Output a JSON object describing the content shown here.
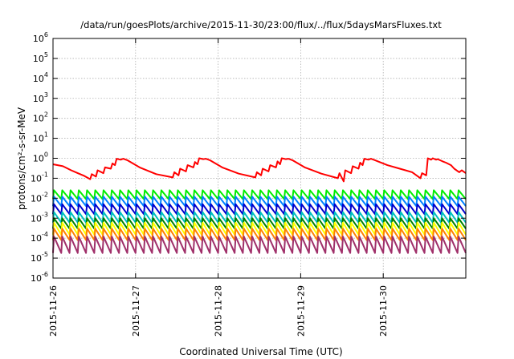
{
  "chart_data": {
    "type": "line",
    "title": "/data/run/goesPlots/archive/2015-11-30/23:00/flux/../flux/5daysMarsFluxes.txt",
    "xlabel": "Coordinated Universal Time (UTC)",
    "ylabel": "protons/cm²-s-sr-MeV",
    "y_scale": "log",
    "ylim": [
      1e-06,
      1000000.0
    ],
    "y_tick_labels": [
      {
        "base": "10",
        "exp": "-6"
      },
      {
        "base": "10",
        "exp": "-5"
      },
      {
        "base": "10",
        "exp": "-4"
      },
      {
        "base": "10",
        "exp": "-3"
      },
      {
        "base": "10",
        "exp": "-2"
      },
      {
        "base": "10",
        "exp": "-1"
      },
      {
        "base": "10",
        "exp": "0"
      },
      {
        "base": "10",
        "exp": "1"
      },
      {
        "base": "10",
        "exp": "2"
      },
      {
        "base": "10",
        "exp": "3"
      },
      {
        "base": "10",
        "exp": "4"
      },
      {
        "base": "10",
        "exp": "5"
      },
      {
        "base": "10",
        "exp": "6"
      }
    ],
    "xlim": [
      "2015-11-26",
      "2015-12-01"
    ],
    "x_ticks": [
      "2015-11-26",
      "2015-11-27",
      "2015-11-28",
      "2015-11-29",
      "2015-11-30"
    ],
    "grid": true,
    "series": [
      {
        "color": "#ff0000",
        "x_days": [
          0,
          0.12,
          0.22,
          0.3,
          0.38,
          0.45,
          0.47,
          0.52,
          0.54,
          0.61,
          0.63,
          0.7,
          0.72,
          0.75,
          0.77,
          0.82,
          0.85,
          0.9,
          1.05,
          1.25,
          1.45,
          1.47,
          1.52,
          1.54,
          1.61,
          1.63,
          1.7,
          1.72,
          1.75,
          1.77,
          1.82,
          1.85,
          1.9,
          2.05,
          2.25,
          2.45,
          2.47,
          2.52,
          2.54,
          2.61,
          2.63,
          2.7,
          2.72,
          2.75,
          2.77,
          2.82,
          2.85,
          2.9,
          3.05,
          3.25,
          3.45,
          3.47,
          3.52,
          3.54,
          3.61,
          3.63,
          3.7,
          3.72,
          3.75,
          3.77,
          3.82,
          3.85,
          3.9,
          4.05,
          4.2,
          4.35,
          4.45,
          4.47,
          4.52,
          4.54,
          4.58,
          4.6,
          4.64,
          4.66,
          4.72,
          4.76,
          4.82,
          4.86,
          4.92,
          4.95,
          5.0
        ],
        "values": [
          0.5,
          0.4,
          0.25,
          0.18,
          0.13,
          0.09,
          0.16,
          0.12,
          0.25,
          0.18,
          0.35,
          0.3,
          0.55,
          0.45,
          0.95,
          0.85,
          0.95,
          0.8,
          0.35,
          0.16,
          0.11,
          0.2,
          0.14,
          0.3,
          0.22,
          0.45,
          0.35,
          0.65,
          0.5,
          1.0,
          0.9,
          0.95,
          0.8,
          0.35,
          0.17,
          0.11,
          0.2,
          0.14,
          0.3,
          0.22,
          0.45,
          0.35,
          0.7,
          0.5,
          1.0,
          0.9,
          0.95,
          0.8,
          0.35,
          0.17,
          0.1,
          0.18,
          0.07,
          0.25,
          0.18,
          0.4,
          0.3,
          0.6,
          0.45,
          0.95,
          0.85,
          0.95,
          0.8,
          0.45,
          0.3,
          0.2,
          0.1,
          0.18,
          0.14,
          1.0,
          0.85,
          1.0,
          0.85,
          0.9,
          0.7,
          0.6,
          0.45,
          0.3,
          0.2,
          0.25,
          0.18
        ]
      },
      {
        "color": "#00ee00",
        "hi": 0.025,
        "lo": 0.009
      },
      {
        "color": "#0080ff",
        "hi": 0.012,
        "lo": 0.004
      },
      {
        "color": "#0000cc",
        "hi": 0.005,
        "lo": 0.0016
      },
      {
        "color": "#00c0c0",
        "hi": 0.002,
        "lo": 0.0006
      },
      {
        "color": "#008000",
        "hi": 0.001,
        "lo": 0.0003
      },
      {
        "color": "#ffff00",
        "hi": 0.0006,
        "lo": 0.00015
      },
      {
        "color": "#ff8000",
        "hi": 0.0003,
        "lo": 8e-05
      },
      {
        "color": "#a0306a",
        "hi": 0.00012,
        "lo": 1.8e-05
      }
    ],
    "sawtooth_period_days": 0.1
  }
}
